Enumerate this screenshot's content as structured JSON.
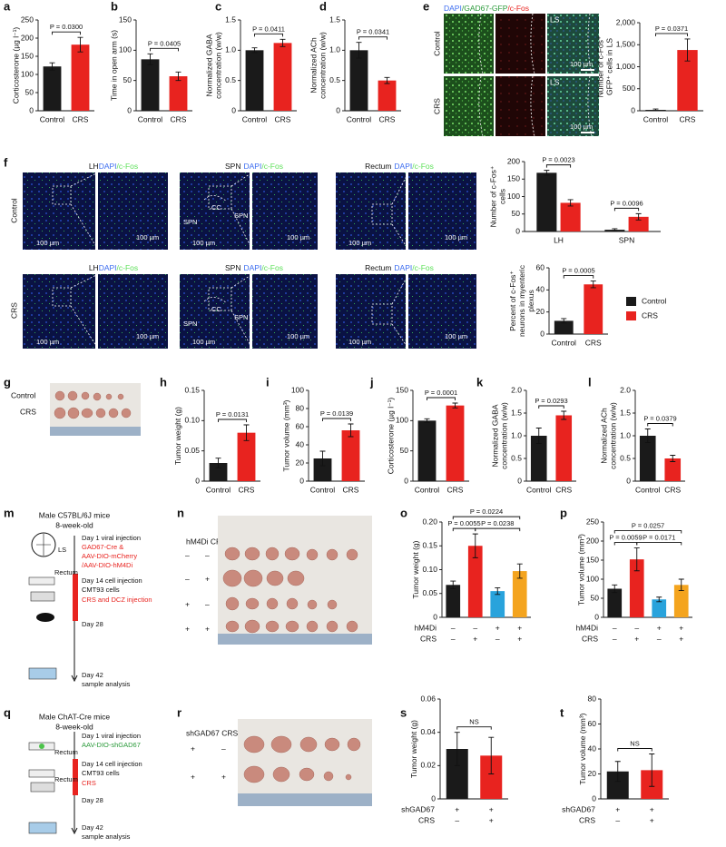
{
  "panel_labels": [
    "a",
    "b",
    "c",
    "d",
    "e",
    "f",
    "g",
    "h",
    "i",
    "j",
    "k",
    "l",
    "m",
    "n",
    "o",
    "p",
    "q",
    "r",
    "s",
    "t"
  ],
  "panel_e": {
    "stains": [
      "DAPI",
      "/GAD67-GFP",
      "/c-Fos"
    ],
    "region": "LS",
    "scale": "100 µm",
    "rows": [
      "Control",
      "CRS"
    ]
  },
  "panel_f": {
    "rows": [
      "Control",
      "CRS"
    ],
    "regions": [
      "LH",
      "SPN",
      "Rectum"
    ],
    "stains": [
      "DAPI",
      "/c-Fos"
    ],
    "scale": "100 µm",
    "spn_labels": [
      "SPN",
      "CC",
      "SPN"
    ]
  },
  "panel_g": {
    "rows": [
      "Control",
      "CRS"
    ]
  },
  "panel_m": {
    "title": [
      "Male C57BL/6J mice",
      "8-week-old"
    ],
    "brain_label": "LS",
    "rectum": "Rectum",
    "timeline": [
      "Day 1 viral injection",
      "GAD67-Cre &",
      "AAV-DIO-mCherry",
      "/AAV-DIO-hM4Di",
      "Day 14 cell injection",
      "CMT93 cells",
      "CRS and DCZ injection",
      "Day 28",
      "Day 42",
      "sample analysis"
    ]
  },
  "panel_n": {
    "header": "hM4Di CRS",
    "rows": [
      [
        "–",
        "–"
      ],
      [
        "–",
        "+"
      ],
      [
        "+",
        "–"
      ],
      [
        "+",
        "+"
      ]
    ]
  },
  "panel_q": {
    "title": [
      "Male ChAT-Cre mice",
      "8-week-old"
    ],
    "rectum": "Rectum",
    "timeline": [
      "Day 1 viral injection",
      "AAV-DIO-shGAD67",
      "Day 14 cell injection",
      "CMT93 cells",
      "CRS",
      "Day 28",
      "Day 42",
      "sample analysis"
    ]
  },
  "panel_r": {
    "header": "shGAD67 CRS",
    "rows": [
      [
        "+",
        "–"
      ],
      [
        "+",
        "+"
      ]
    ]
  },
  "chart_data": [
    {
      "type": "bar",
      "ylabel": [
        "Corticosterone (µg l⁻¹)"
      ],
      "categories": [
        "Control",
        "CRS"
      ],
      "values": [
        122,
        182
      ],
      "errors": [
        10,
        20
      ],
      "colors": [
        "#1a1a1a",
        "#e8231f"
      ],
      "ylim": [
        0,
        250
      ],
      "yticks": [
        0,
        50,
        100,
        150,
        200,
        250
      ],
      "annotations": [
        "P = 0.0300"
      ]
    },
    {
      "type": "bar",
      "ylabel": [
        "Time in open arm (s)"
      ],
      "categories": [
        "Control",
        "CRS"
      ],
      "values": [
        85,
        57
      ],
      "errors": [
        9,
        7
      ],
      "colors": [
        "#1a1a1a",
        "#e8231f"
      ],
      "ylim": [
        0,
        150
      ],
      "yticks": [
        0,
        50,
        100,
        150
      ],
      "annotations": [
        "P = 0.0405"
      ]
    },
    {
      "type": "bar",
      "ylabel": [
        "Normalized GABA",
        "concentration (w/w)"
      ],
      "categories": [
        "Control",
        "CRS"
      ],
      "values": [
        1.0,
        1.12
      ],
      "errors": [
        0.04,
        0.06
      ],
      "colors": [
        "#1a1a1a",
        "#e8231f"
      ],
      "ylim": [
        0,
        1.5
      ],
      "yticks": [
        0,
        0.5,
        {
          "value": 1,
          "label": "1.0"
        },
        1.5
      ],
      "annotations": [
        "P = 0.0411"
      ]
    },
    {
      "type": "bar",
      "ylabel": [
        "Normalized ACh",
        "concentration (w/w)"
      ],
      "categories": [
        "Control",
        "CRS"
      ],
      "values": [
        1.0,
        0.5
      ],
      "errors": [
        0.13,
        0.05
      ],
      "colors": [
        "#1a1a1a",
        "#e8231f"
      ],
      "ylim": [
        0,
        1.5
      ],
      "yticks": [
        0,
        0.5,
        {
          "value": 1,
          "label": "1.0"
        },
        1.5
      ],
      "annotations": [
        "P = 0.0341"
      ]
    },
    {
      "type": "bar",
      "ylabel": [
        "Number of c-Fos⁺",
        "GFP⁺ cells in LS"
      ],
      "categories": [
        "Control",
        "CRS"
      ],
      "values": [
        20,
        1380
      ],
      "errors": [
        20,
        250
      ],
      "colors": [
        "#1a1a1a",
        "#e8231f"
      ],
      "ylim": [
        0,
        2000
      ],
      "yticks": [
        0,
        500,
        {
          "value": 1000,
          "label": "1,000"
        },
        {
          "value": 1500,
          "label": "1,500"
        },
        {
          "value": 2000,
          "label": "2,000"
        }
      ],
      "annotations": [
        "P = 0.0371"
      ]
    },
    {
      "type": "grouped",
      "ylabel": [
        "Number of c-Fos⁺",
        "cells"
      ],
      "categories": [
        "LH",
        "SPN"
      ],
      "series": [
        {
          "name": "Control",
          "color": "#1a1a1a",
          "values": [
            168,
            5
          ],
          "errors": [
            7,
            3
          ]
        },
        {
          "name": "CRS",
          "color": "#e8231f",
          "values": [
            82,
            42
          ],
          "errors": [
            9,
            9
          ]
        }
      ],
      "ylim": [
        0,
        200
      ],
      "yticks": [
        0,
        50,
        100,
        150,
        200
      ],
      "annotations": [
        "P = 0.0023",
        "P = 0.0096"
      ]
    },
    {
      "type": "bar",
      "ylabel": [
        "Percent of c-Fos⁺",
        "neurons in myenteric",
        "plexus"
      ],
      "categories": [
        "Control",
        "CRS"
      ],
      "values": [
        12,
        45
      ],
      "errors": [
        2,
        3
      ],
      "colors": [
        "#1a1a1a",
        "#e8231f"
      ],
      "ylim": [
        0,
        60
      ],
      "yticks": [
        0,
        20,
        40,
        60
      ],
      "annotations": [
        "P = 0.0005"
      ]
    },
    {
      "type": "bar",
      "ylabel": [
        "Tumor weight (g)"
      ],
      "categories": [
        "Control",
        "CRS"
      ],
      "values": [
        0.03,
        0.08
      ],
      "errors": [
        0.008,
        0.013
      ],
      "colors": [
        "#1a1a1a",
        "#e8231f"
      ],
      "ylim": [
        0,
        0.15
      ],
      "yticks": [
        0,
        0.05,
        {
          "value": 0.1,
          "label": "0.10"
        },
        0.15
      ],
      "annotations": [
        "P = 0.0131"
      ]
    },
    {
      "type": "bar",
      "ylabel": [
        "Tumor volume (mm³)"
      ],
      "categories": [
        "Control",
        "CRS"
      ],
      "values": [
        25,
        56
      ],
      "errors": [
        8,
        7
      ],
      "colors": [
        "#1a1a1a",
        "#e8231f"
      ],
      "ylim": [
        0,
        100
      ],
      "yticks": [
        0,
        20,
        40,
        60,
        80,
        100
      ],
      "annotations": [
        "P = 0.0139"
      ]
    },
    {
      "type": "bar",
      "ylabel": [
        "Corticosterone (µg l⁻¹)"
      ],
      "categories": [
        "Control",
        "CRS"
      ],
      "values": [
        100,
        125
      ],
      "errors": [
        3,
        4
      ],
      "colors": [
        "#1a1a1a",
        "#e8231f"
      ],
      "ylim": [
        0,
        150
      ],
      "yticks": [
        0,
        50,
        100,
        150
      ],
      "annotations": [
        "P = 0.0001"
      ]
    },
    {
      "type": "bar",
      "ylabel": [
        "Normalized GABA",
        "concentration (w/w)"
      ],
      "categories": [
        "Control",
        "CRS"
      ],
      "values": [
        1.0,
        1.45
      ],
      "errors": [
        0.17,
        0.09
      ],
      "colors": [
        "#1a1a1a",
        "#e8231f"
      ],
      "ylim": [
        0,
        2
      ],
      "yticks": [
        0,
        0.5,
        {
          "value": 1,
          "label": "1.0"
        },
        1.5,
        {
          "value": 2,
          "label": "2.0"
        }
      ],
      "annotations": [
        "P = 0.0293"
      ]
    },
    {
      "type": "bar",
      "ylabel": [
        "Normalized ACh",
        "concentration (w/w)"
      ],
      "categories": [
        "Control",
        "CRS"
      ],
      "values": [
        1.0,
        0.5
      ],
      "errors": [
        0.15,
        0.07
      ],
      "colors": [
        "#1a1a1a",
        "#e8231f"
      ],
      "ylim": [
        0,
        2
      ],
      "yticks": [
        0,
        0.5,
        {
          "value": 1,
          "label": "1.0"
        },
        1.5,
        {
          "value": 2,
          "label": "2.0"
        }
      ],
      "annotations": [
        "P = 0.0379"
      ]
    },
    {
      "type": "bar",
      "ylabel": [
        "Tumor weight (g)"
      ],
      "categories": [
        null,
        null,
        null,
        null
      ],
      "values": [
        0.068,
        0.15,
        0.055,
        0.097
      ],
      "errors": [
        0.008,
        0.025,
        0.007,
        0.015
      ],
      "colors": [
        "#1a1a1a",
        "#e8231f",
        "#29a3dc",
        "#f4a41e"
      ],
      "ylim": [
        0,
        0.2
      ],
      "yticks": [
        0,
        0.05,
        {
          "value": 0.1,
          "label": "0.10"
        },
        0.15,
        {
          "value": 0.2,
          "label": "0.20"
        }
      ],
      "factors": [
        {
          "name": "hM4Di",
          "levels": [
            "–",
            "–",
            "+",
            "+"
          ]
        },
        {
          "name": "CRS",
          "levels": [
            "–",
            "+",
            "–",
            "+"
          ]
        }
      ],
      "annotations": [
        "P = 0.0224",
        "P = 0.0055",
        "P = 0.0238"
      ]
    },
    {
      "type": "bar",
      "ylabel": [
        "Tumor volume (mm³)"
      ],
      "categories": [
        null,
        null,
        null,
        null
      ],
      "values": [
        75,
        152,
        47,
        85
      ],
      "errors": [
        10,
        30,
        6,
        15
      ],
      "colors": [
        "#1a1a1a",
        "#e8231f",
        "#29a3dc",
        "#f4a41e"
      ],
      "ylim": [
        0,
        250
      ],
      "yticks": [
        0,
        50,
        100,
        150,
        200,
        250
      ],
      "factors": [
        {
          "name": "hM4Di",
          "levels": [
            "–",
            "–",
            "+",
            "+"
          ]
        },
        {
          "name": "CRS",
          "levels": [
            "–",
            "+",
            "–",
            "+"
          ]
        }
      ],
      "annotations": [
        "P = 0.0257",
        "P = 0.0059",
        "P = 0.0171"
      ]
    },
    {
      "type": "bar",
      "ylabel": [
        "Tumor weight (g)"
      ],
      "categories": [
        null,
        null
      ],
      "values": [
        0.03,
        0.026
      ],
      "errors": [
        0.01,
        0.011
      ],
      "colors": [
        "#1a1a1a",
        "#e8231f"
      ],
      "ylim": [
        0,
        0.06
      ],
      "yticks": [
        0,
        0.02,
        0.04,
        0.06
      ],
      "factors": [
        {
          "name": "shGAD67",
          "levels": [
            "+",
            "+"
          ]
        },
        {
          "name": "CRS",
          "levels": [
            "–",
            "+"
          ]
        }
      ],
      "annotations": [
        "NS"
      ]
    },
    {
      "type": "bar",
      "ylabel": [
        "Tumor volume (mm³)"
      ],
      "categories": [
        null,
        null
      ],
      "values": [
        22,
        23
      ],
      "errors": [
        8,
        13
      ],
      "colors": [
        "#1a1a1a",
        "#e8231f"
      ],
      "ylim": [
        0,
        80
      ],
      "yticks": [
        0,
        20,
        40,
        60,
        80
      ],
      "factors": [
        {
          "name": "shGAD67",
          "levels": [
            "+",
            "+"
          ]
        },
        {
          "name": "CRS",
          "levels": [
            "–",
            "+"
          ]
        }
      ],
      "annotations": [
        "NS"
      ]
    }
  ]
}
